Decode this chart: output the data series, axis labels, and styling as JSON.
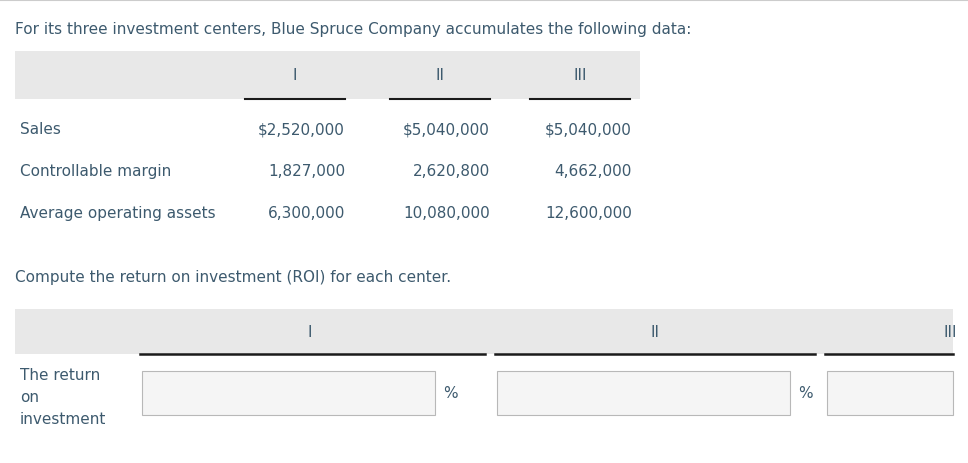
{
  "title": "For its three investment centers, Blue Spruce Company accumulates the following data:",
  "subtitle": "Compute the return on investment (ROI) for each center.",
  "header_bg": "#e8e8e8",
  "text_color": "#3d5a6e",
  "bg_color": "#ffffff",
  "input_bg": "#f5f5f5",
  "input_border": "#b8b8b8",
  "line_color": "#1a1a1a",
  "table1": {
    "col_headers": [
      "I",
      "II",
      "III"
    ],
    "rows": [
      [
        "Sales",
        "$2,520,000",
        "$5,040,000",
        "$5,040,000"
      ],
      [
        "Controllable margin",
        "1,827,000",
        "2,620,800",
        "4,662,000"
      ],
      [
        "Average operating assets",
        "6,300,000",
        "10,080,000",
        "12,600,000"
      ]
    ]
  },
  "table2": {
    "col_headers": [
      "I",
      "II",
      "III"
    ],
    "row_label": "The return\non\ninvestment"
  },
  "font_size": 11,
  "header_font_size": 11
}
